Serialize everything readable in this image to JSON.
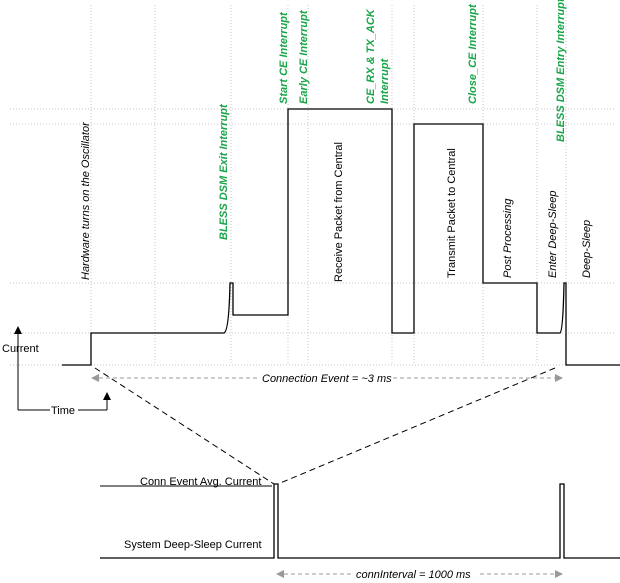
{
  "phases": {
    "hw_osc": "Hardware turns on the Oscillator",
    "receive": "Receive Packet from Central",
    "transmit": "Transmit Packet to Central",
    "post": "Post Processing",
    "enter_ds": "Enter Deep-Sleep",
    "deep_sleep": "Deep-Sleep"
  },
  "interrupts": {
    "dsm_exit": "BLESS DSM Exit Interrupt",
    "start_ce": "Start CE Interrupt",
    "early_ce": "Early CE Interrupt",
    "ce_rx_tx_ack_1": "CE_RX & TX_ACK",
    "ce_rx_tx_ack_2": "Interrupt",
    "close_ce": "Close_CE Interrupt",
    "dsm_entry": "BLESS DSM Entry Interrupt"
  },
  "axes": {
    "current": "Current",
    "time": "Time"
  },
  "spans": {
    "connection_event": "Connection Event = ~3 ms",
    "conn_interval": "connInterval = 1000 ms"
  },
  "levels": {
    "avg_current": "Conn Event Avg. Current",
    "deep_sleep_current": "System Deep-Sleep Current"
  }
}
